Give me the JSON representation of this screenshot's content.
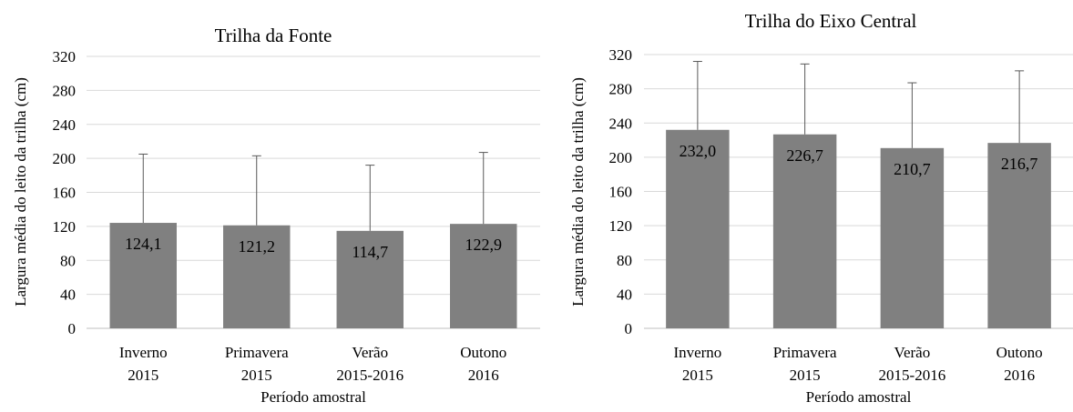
{
  "chart_data": [
    {
      "type": "bar",
      "title": "Trilha da Fonte",
      "xlabel": "Período amostral",
      "ylabel": "Largura média do leito da trilha (cm)",
      "categories": [
        [
          "Inverno",
          "2015"
        ],
        [
          "Primavera",
          "2015"
        ],
        [
          "Verão",
          "2015-2016"
        ],
        [
          "Outono",
          "2016"
        ]
      ],
      "values": [
        124.1,
        121.2,
        114.7,
        122.9
      ],
      "value_labels": [
        "124,1",
        "121,2",
        "114,7",
        "122,9"
      ],
      "error_upper": [
        205,
        203,
        192,
        207
      ],
      "ylim": [
        0,
        320
      ],
      "yticks": [
        0,
        40,
        80,
        120,
        160,
        200,
        240,
        280,
        320
      ],
      "grid": true,
      "legend": "none",
      "bar_color": "#808080"
    },
    {
      "type": "bar",
      "title": "Trilha do Eixo Central",
      "xlabel": "Período amostral",
      "ylabel": "Largura média do leito da trilha (cm)",
      "categories": [
        [
          "Inverno",
          "2015"
        ],
        [
          "Primavera",
          "2015"
        ],
        [
          "Verão",
          "2015-2016"
        ],
        [
          "Outono",
          "2016"
        ]
      ],
      "values": [
        232.0,
        226.7,
        210.7,
        216.7
      ],
      "value_labels": [
        "232,0",
        "226,7",
        "210,7",
        "216,7"
      ],
      "error_upper": [
        312,
        309,
        287,
        301
      ],
      "ylim": [
        0,
        320
      ],
      "yticks": [
        0,
        40,
        80,
        120,
        160,
        200,
        240,
        280,
        320
      ],
      "grid": true,
      "legend": "none",
      "bar_color": "#808080"
    }
  ]
}
